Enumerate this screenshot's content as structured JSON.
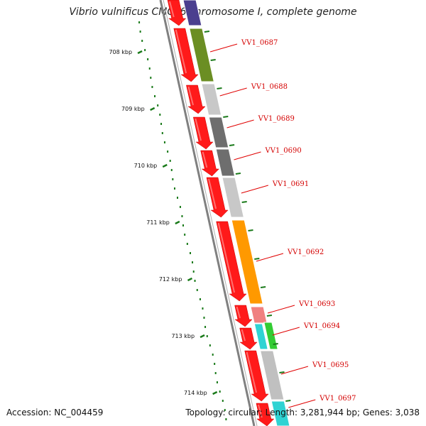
{
  "title": "Vibrio vulnificus CMCP6 chromosome I, complete genome",
  "footer": {
    "accession": "Accession: NC_004459",
    "summary": "Topology: circular; Length: 3,281,944 bp; Genes: 3,038"
  },
  "colors": {
    "forward_strand": "#ff1a1a",
    "backbone": "#808080",
    "gc_ticks": "#1a7a1a",
    "label_line": "#e00000"
  },
  "ticks": [
    {
      "label": "708 kbp"
    },
    {
      "label": "709 kbp"
    },
    {
      "label": "710 kbp"
    },
    {
      "label": "711 kbp"
    },
    {
      "label": "712 kbp"
    },
    {
      "label": "713 kbp"
    },
    {
      "label": "714 kbp"
    }
  ],
  "gene_labels": [
    {
      "name": "VV1_0687"
    },
    {
      "name": "VV1_0688"
    },
    {
      "name": "VV1_0689"
    },
    {
      "name": "VV1_0690"
    },
    {
      "name": "VV1_0691"
    },
    {
      "name": "VV1_0692"
    },
    {
      "name": "VV1_0693"
    },
    {
      "name": "VV1_0694"
    },
    {
      "name": "VV1_0695"
    },
    {
      "name": "VV1_0697"
    }
  ],
  "cog_blocks": [
    {
      "color": "#4b3f8f"
    },
    {
      "color": "#6b8e23"
    },
    {
      "color": "#c8c8c8"
    },
    {
      "color": "#6e6e6e"
    },
    {
      "color": "#6e6e6e"
    },
    {
      "color": "#c8c8c8"
    },
    {
      "color": "#ff9900"
    },
    {
      "color": "#f08080"
    },
    {
      "color": "#2fd3d3"
    },
    {
      "color": "#33cc33"
    },
    {
      "color": "#c0c0c0"
    },
    {
      "color": "#2fd3d3"
    }
  ]
}
